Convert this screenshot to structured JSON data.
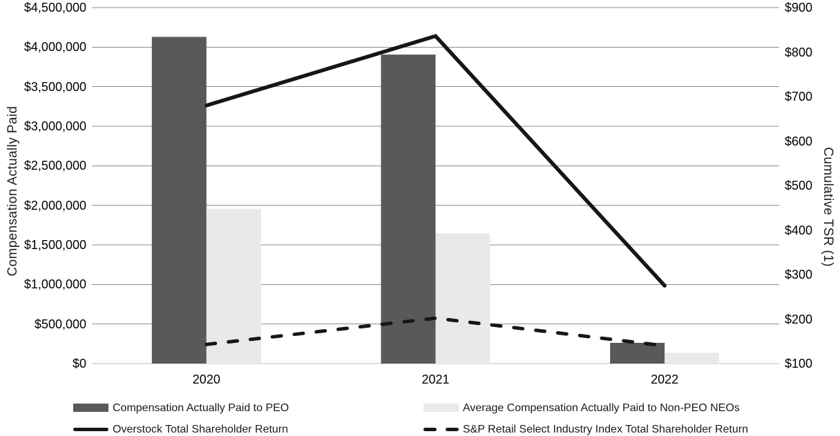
{
  "colors": {
    "background": "#ffffff",
    "gridline": "#8c8c8c",
    "axis_line": "#bdbdbd",
    "text": "#000000"
  },
  "axes": {
    "left_ticks": [
      "$4,500,000",
      "$4,000,000",
      "$3,500,000",
      "$3,000,000",
      "$2,500,000",
      "$2,000,000",
      "$1,500,000",
      "$1,000,000",
      "$500,000",
      "$0"
    ],
    "right_ticks": [
      "$900",
      "$800",
      "$700",
      "$600",
      "$500",
      "$400",
      "$300",
      "$200",
      "$100"
    ],
    "x_ticks": [
      "2020",
      "2021",
      "2022"
    ]
  },
  "chart_data": {
    "type": "combo-bar-line",
    "categories": [
      "2020",
      "2021",
      "2022"
    ],
    "series": [
      {
        "name": "Compensation Actually Paid to PEO",
        "type": "bar",
        "axis": "left",
        "color": "#595959",
        "values": [
          4130000,
          3906000,
          262000
        ]
      },
      {
        "name": "Average Compensation Actually Paid to Non-PEO NEOs",
        "type": "bar",
        "axis": "left",
        "color": "#e9e9e9",
        "values": [
          1956000,
          1646000,
          136000
        ]
      },
      {
        "name": "Overstock Total Shareholder Return",
        "type": "line",
        "line_style": "solid",
        "axis": "right",
        "color": "#161616",
        "values": [
          680,
          836,
          275
        ]
      },
      {
        "name": "S&P Retail Select Industry Index Total Shareholder Return",
        "type": "line",
        "line_style": "dashed",
        "axis": "right",
        "color": "#161616",
        "values": [
          143,
          202,
          140
        ]
      }
    ],
    "left_axis": {
      "title": "Compensation Actually Paid",
      "min": 0,
      "max": 4500000,
      "step": 500000,
      "tick_prefix": "$"
    },
    "right_axis": {
      "title": "Cumulative TSR (1)",
      "min": 100,
      "max": 900,
      "step": 100,
      "tick_prefix": "$"
    },
    "grid": true,
    "legend_position": "bottom"
  }
}
